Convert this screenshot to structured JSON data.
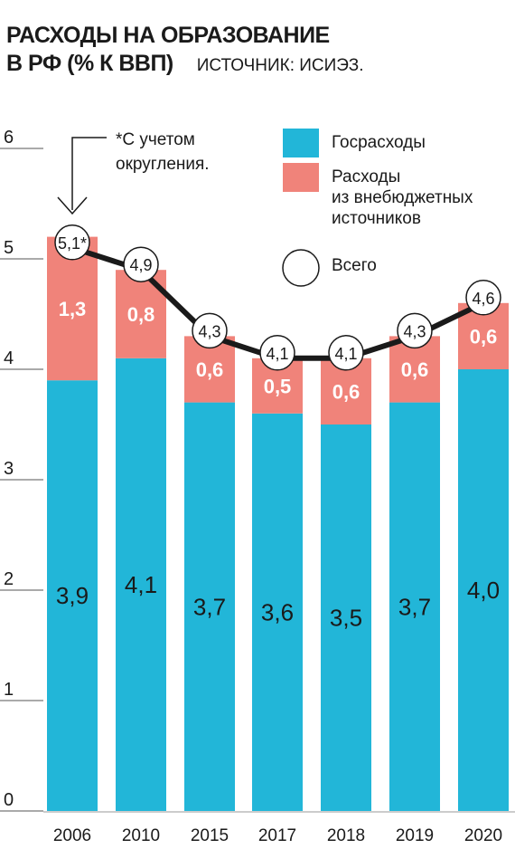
{
  "title": {
    "line1": "РАСХОДЫ НА ОБРАЗОВАНИЕ",
    "line2": "В РФ (% К ВВП)",
    "source": "ИСТОЧНИК: ИСИЭЗ."
  },
  "note": {
    "line1": "*С учетом",
    "line2": "округления."
  },
  "colors": {
    "gov": "#22b6d8",
    "extra": "#f0837a",
    "line": "#1a1a1a"
  },
  "legend": [
    {
      "lines": [
        "Госрасходы"
      ],
      "color": "#22b6d8",
      "shape": "square"
    },
    {
      "lines": [
        "Расходы",
        "из внебюджетных",
        "источников"
      ],
      "color": "#f0837a",
      "shape": "square"
    },
    {
      "lines": [
        "Всего"
      ],
      "color": "#ffffff",
      "shape": "circle"
    }
  ],
  "chart_data": {
    "type": "bar",
    "stacked": true,
    "categories": [
      "2006",
      "2010",
      "2015",
      "2017",
      "2018",
      "2019",
      "2020"
    ],
    "series": [
      {
        "name": "Госрасходы",
        "values": [
          3.9,
          4.1,
          3.7,
          3.6,
          3.5,
          3.7,
          4.0
        ]
      },
      {
        "name": "Расходы из внебюджетных источников",
        "values": [
          1.3,
          0.8,
          0.6,
          0.5,
          0.6,
          0.6,
          0.6
        ]
      }
    ],
    "line_series": {
      "name": "Всего",
      "values": [
        5.1,
        4.9,
        4.3,
        4.1,
        4.1,
        4.3,
        4.6
      ]
    },
    "gov_labels": [
      "3,9",
      "4,1",
      "3,7",
      "3,6",
      "3,5",
      "3,7",
      "4,0"
    ],
    "extra_labels": [
      "1,3",
      "0,8",
      "0,6",
      "0,5",
      "0,6",
      "0,6",
      "0,6"
    ],
    "total_labels": [
      "5,1*",
      "4,9",
      "4,3",
      "4,1",
      "4,1",
      "4,3",
      "4,6"
    ],
    "yticks": [
      "0",
      "1",
      "2",
      "3",
      "4",
      "5",
      "6"
    ],
    "ylim": [
      0,
      6
    ],
    "grid": true,
    "legend_position": "top-right"
  }
}
